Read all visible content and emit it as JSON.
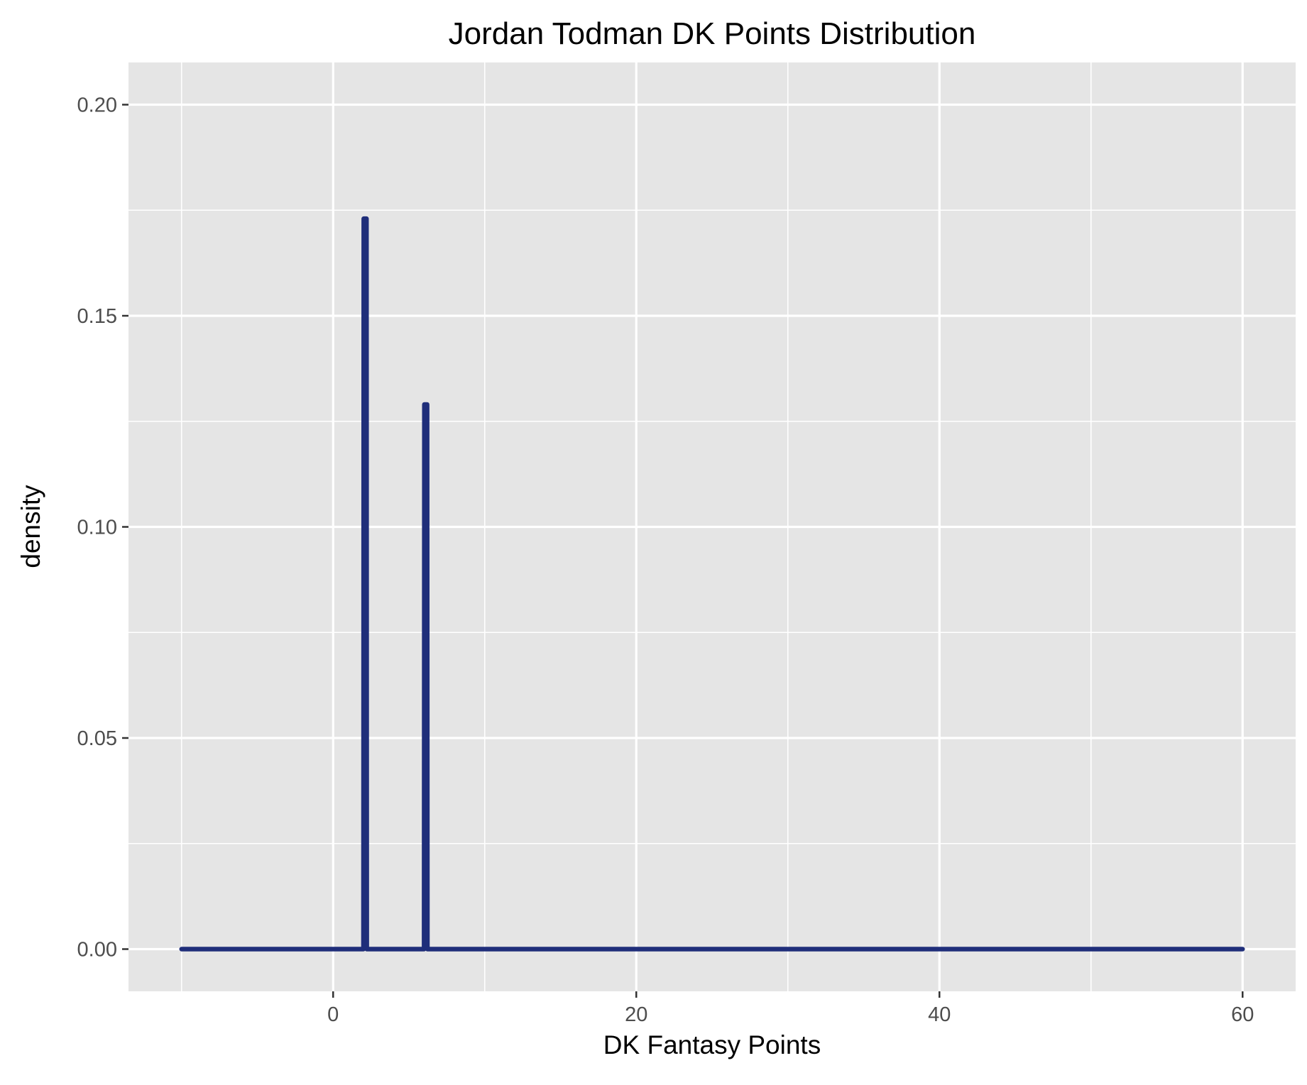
{
  "chart_data": {
    "type": "line",
    "title": "Jordan Todman DK Points Distribution",
    "xlabel": "DK Fantasy Points",
    "ylabel": "density",
    "xlim": [
      -10,
      60
    ],
    "ylim": [
      0,
      0.2
    ],
    "x_ticks": [
      0,
      20,
      40,
      60
    ],
    "x_tick_labels": [
      "0",
      "20",
      "40",
      "60"
    ],
    "x_minor_gridlines": [
      -10,
      10,
      30,
      50
    ],
    "y_ticks": [
      0,
      0.05,
      0.1,
      0.15,
      0.2
    ],
    "y_tick_labels": [
      "0.00",
      "0.05",
      "0.10",
      "0.15",
      "0.20"
    ],
    "y_minor_gridlines": [
      0.025,
      0.075,
      0.125,
      0.175
    ],
    "grid": true,
    "legend": "none",
    "background_color": "#e5e5e5",
    "grid_color": "#ffffff",
    "line_color": "#1f2e7a",
    "series": [
      {
        "x": [
          -10,
          2.0,
          2.02,
          2.2,
          2.22,
          6.0,
          6.02,
          6.2,
          6.22,
          60
        ],
        "y": [
          0,
          0,
          0.173,
          0.173,
          0,
          0,
          0.129,
          0.129,
          0,
          0
        ]
      }
    ]
  }
}
